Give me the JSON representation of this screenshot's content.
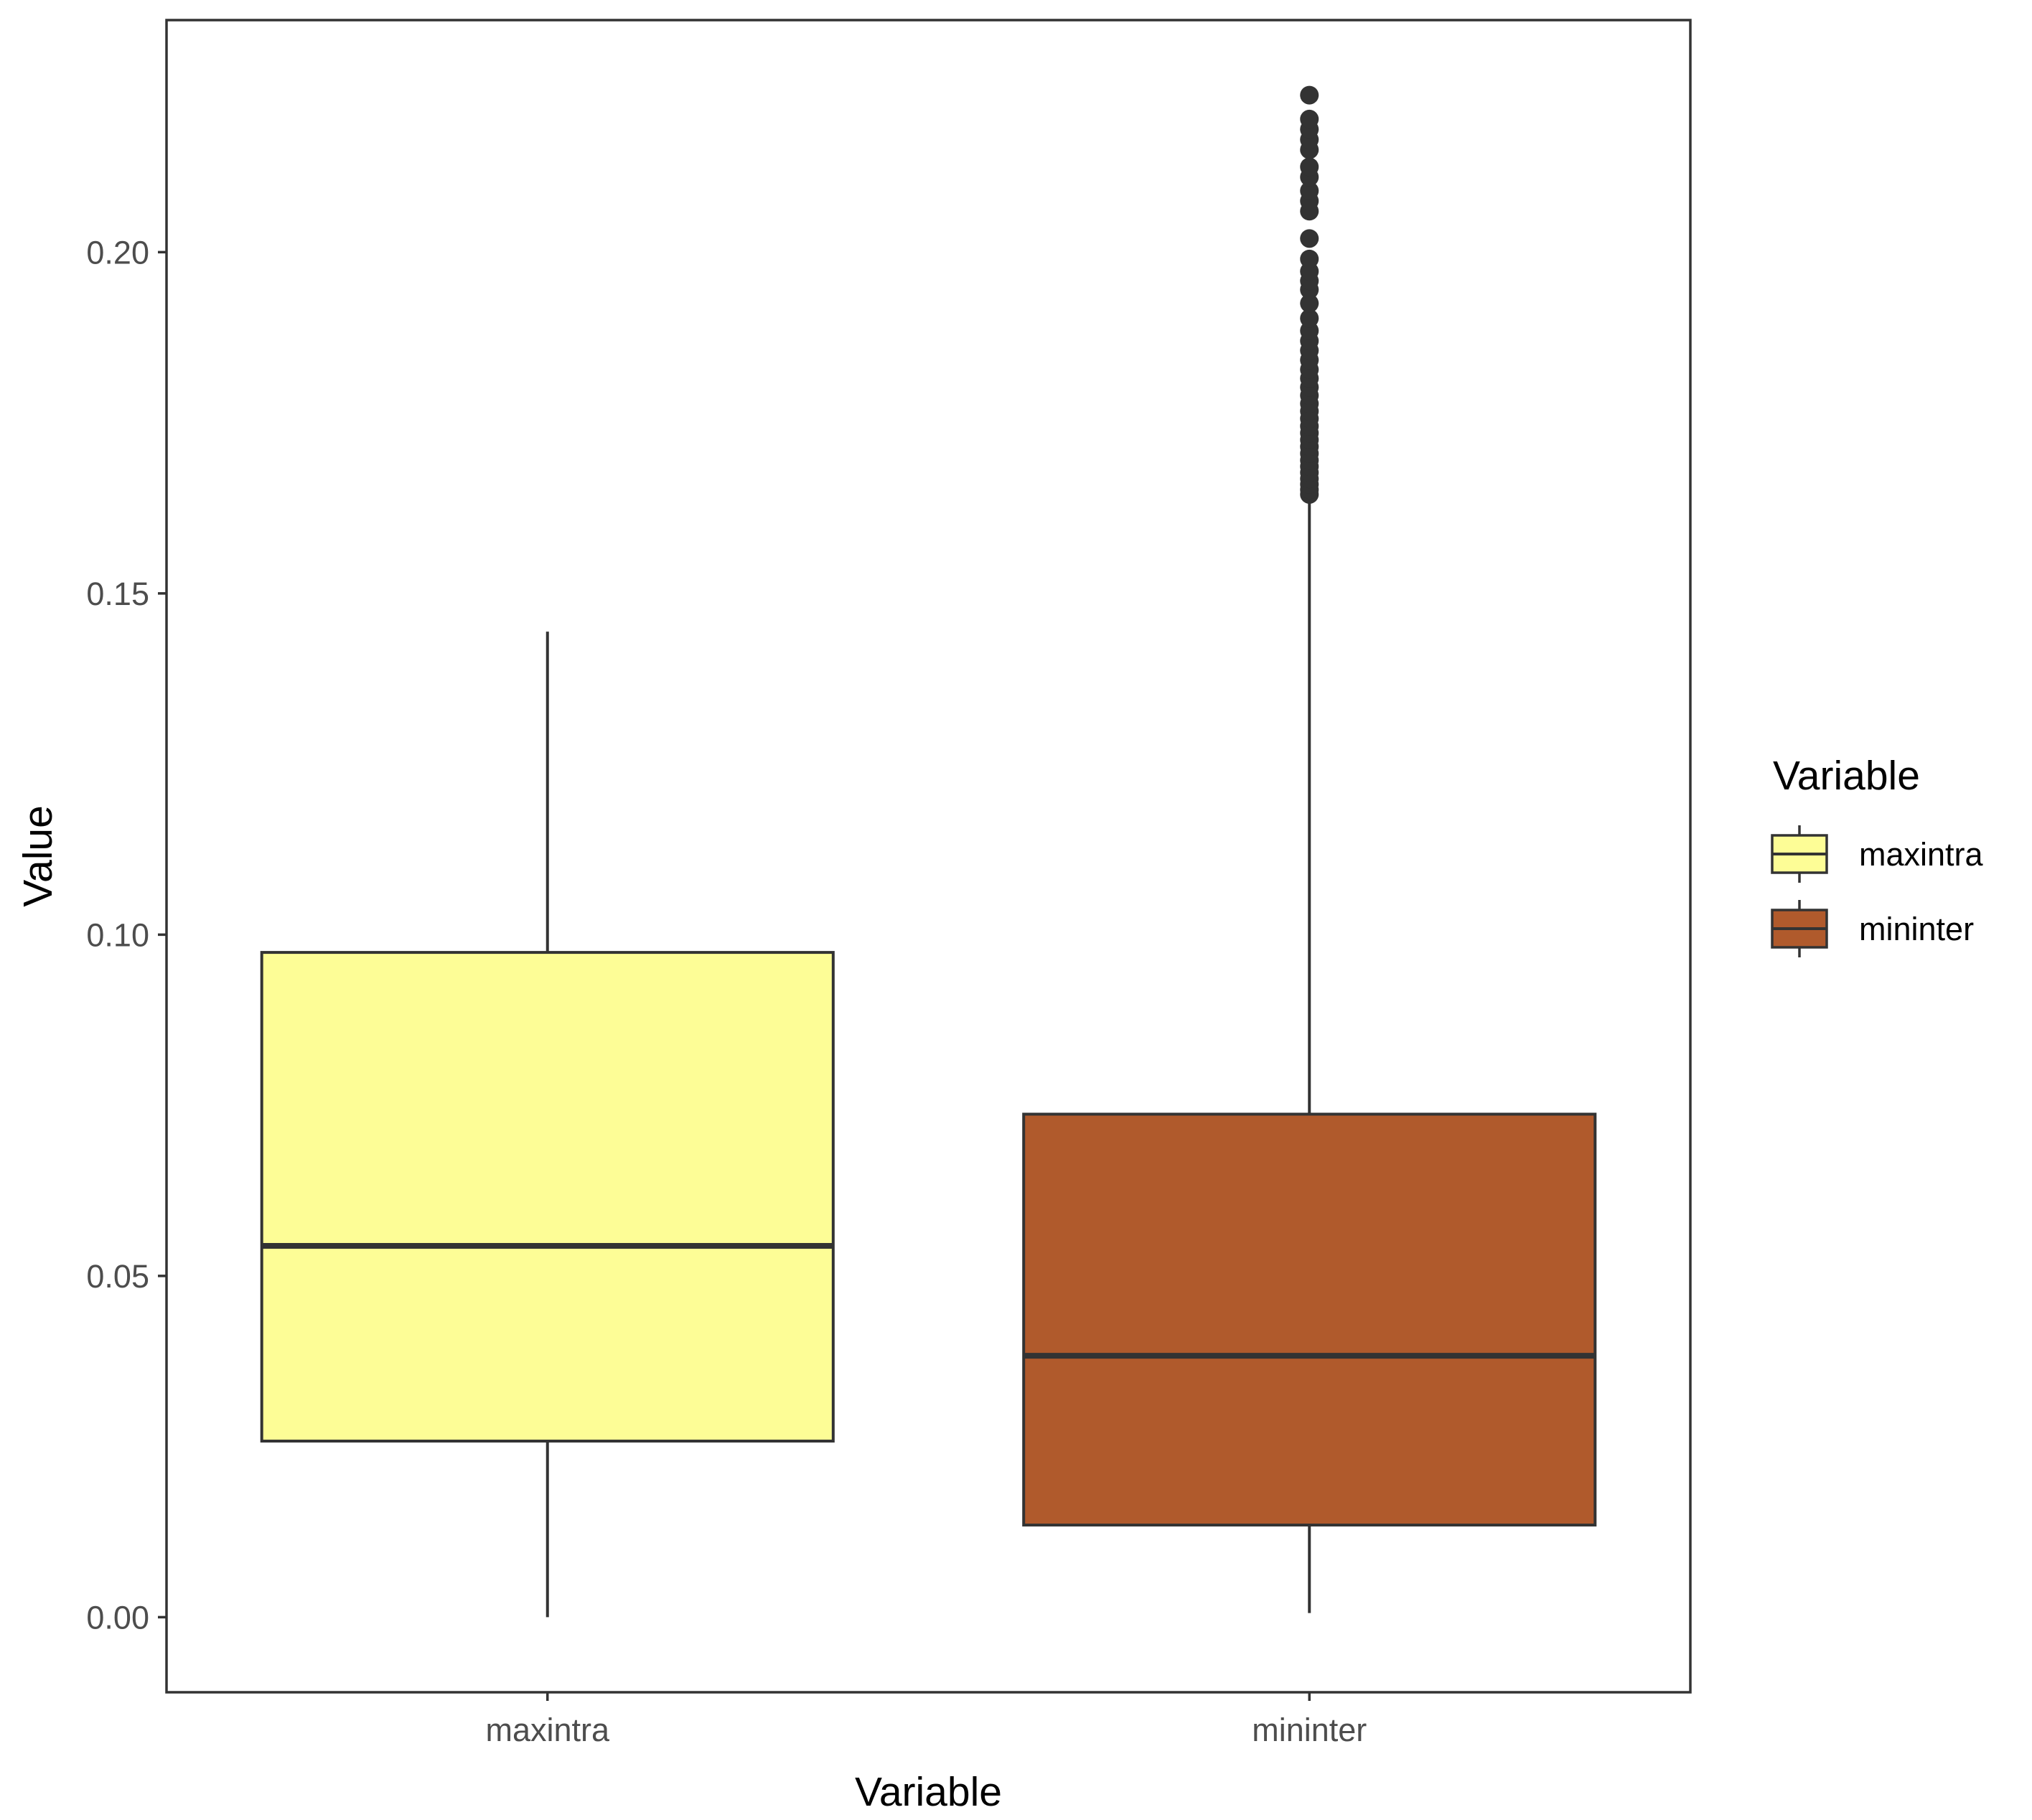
{
  "chart_data": {
    "type": "boxplot",
    "title": "",
    "xlabel": "Variable",
    "ylabel": "Value",
    "ylim": [
      -0.011,
      0.234
    ],
    "yticks": [
      0.0,
      0.05,
      0.1,
      0.15,
      0.2
    ],
    "ytick_labels": [
      "0.00",
      "0.05",
      "0.10",
      "0.15",
      "0.20"
    ],
    "categories": [
      "maxintra",
      "mininter"
    ],
    "grid": false,
    "legend": {
      "title": "Variable",
      "position": "right"
    },
    "boxes": [
      {
        "name": "maxintra",
        "color": "#FDFD96",
        "whisker_low": 0.0,
        "q1": 0.0258,
        "median": 0.0544,
        "q3": 0.0974,
        "whisker_high": 0.1444,
        "outliers": []
      },
      {
        "name": "mininter",
        "color": "#B05A2C",
        "whisker_low": 0.0006,
        "q1": 0.0135,
        "median": 0.0383,
        "q3": 0.0737,
        "whisker_high": 0.164,
        "outliers": [
          0.1645,
          0.1652,
          0.166,
          0.1668,
          0.1677,
          0.1686,
          0.1695,
          0.1705,
          0.1715,
          0.1725,
          0.1735,
          0.1745,
          0.1756,
          0.1767,
          0.1778,
          0.179,
          0.1802,
          0.1815,
          0.1828,
          0.1842,
          0.1856,
          0.187,
          0.1885,
          0.1903,
          0.1925,
          0.1945,
          0.1958,
          0.1972,
          0.199,
          0.202,
          0.206,
          0.2075,
          0.209,
          0.211,
          0.2125,
          0.215,
          0.2165,
          0.218,
          0.2195,
          0.223
        ]
      }
    ]
  }
}
